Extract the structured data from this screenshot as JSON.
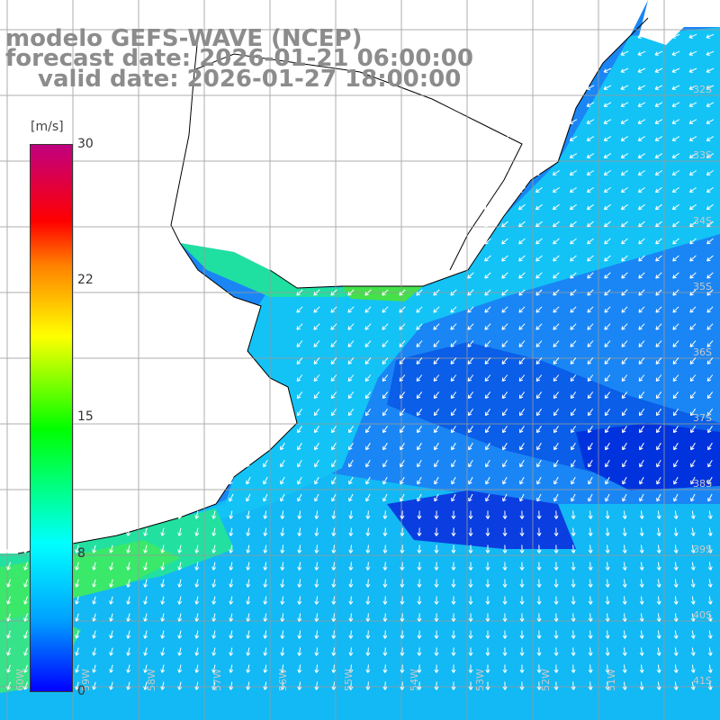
{
  "title": {
    "line1": "modelo GEFS-WAVE (NCEP)",
    "line2": "forecast date: 2026-01-21 06:00:00",
    "line3": "valid date: 2026-01-27 18:00:00"
  },
  "legend": {
    "units": "[m/s]",
    "ticks": [
      "30",
      "22",
      "15",
      "8",
      "0"
    ],
    "tick_values": [
      30,
      22,
      15,
      8,
      0
    ],
    "range": [
      0,
      30
    ],
    "colors": [
      "#0000ff",
      "#00a0ff",
      "#00ffff",
      "#00ff00",
      "#ffff00",
      "#ff8000",
      "#ff0000",
      "#c00080"
    ]
  },
  "map": {
    "lat_labels": [
      "32S",
      "33S",
      "34S",
      "35S",
      "36S",
      "37S",
      "38S",
      "39S",
      "40S",
      "41S"
    ],
    "lon_labels": [
      "60W",
      "59W",
      "58W",
      "57W",
      "56W",
      "55W",
      "54W",
      "53W",
      "52W",
      "51W"
    ],
    "land_color": "#ffffff",
    "coast_color": "#000000",
    "grid_color": "#999999",
    "arrow_color": "#ffffff"
  }
}
